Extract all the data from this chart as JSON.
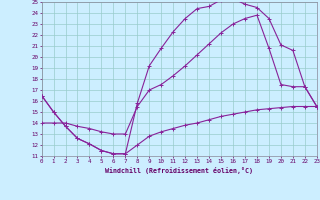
{
  "bg_color": "#cceeff",
  "grid_color": "#99cccc",
  "line_color": "#882299",
  "xmin": 0,
  "xmax": 23,
  "ymin": 11,
  "ymax": 25,
  "yticks": [
    11,
    12,
    13,
    14,
    15,
    16,
    17,
    18,
    19,
    20,
    21,
    22,
    23,
    24,
    25
  ],
  "xticks": [
    0,
    1,
    2,
    3,
    4,
    5,
    6,
    7,
    8,
    9,
    10,
    11,
    12,
    13,
    14,
    15,
    16,
    17,
    18,
    19,
    20,
    21,
    22,
    23
  ],
  "line1_x": [
    0,
    1,
    2,
    3,
    4,
    5,
    6,
    7,
    8,
    9,
    10,
    11,
    12,
    13,
    14,
    15,
    16,
    17,
    18,
    19,
    20,
    21,
    22,
    23
  ],
  "line1_y": [
    16.5,
    15.0,
    13.7,
    12.6,
    12.1,
    11.5,
    11.2,
    11.2,
    15.8,
    19.2,
    20.8,
    22.3,
    23.5,
    24.4,
    24.6,
    25.2,
    25.3,
    24.8,
    24.5,
    23.5,
    21.1,
    20.6,
    17.3,
    15.5
  ],
  "line2_x": [
    0,
    1,
    2,
    3,
    4,
    5,
    6,
    7,
    8,
    9,
    10,
    11,
    12,
    13,
    14,
    15,
    16,
    17,
    18,
    19,
    20,
    21,
    22,
    23
  ],
  "line2_y": [
    16.5,
    15.0,
    13.7,
    12.6,
    12.1,
    11.5,
    11.2,
    11.2,
    12.0,
    12.8,
    13.2,
    13.5,
    13.8,
    14.0,
    14.3,
    14.6,
    14.8,
    15.0,
    15.2,
    15.3,
    15.4,
    15.5,
    15.5,
    15.5
  ],
  "line3_x": [
    0,
    1,
    2,
    3,
    4,
    5,
    6,
    7,
    8,
    9,
    10,
    11,
    12,
    13,
    14,
    15,
    16,
    17,
    18,
    19,
    20,
    21,
    22,
    23
  ],
  "line3_y": [
    14.0,
    14.0,
    14.0,
    13.7,
    13.5,
    13.2,
    13.0,
    13.0,
    15.5,
    17.0,
    17.5,
    18.3,
    19.2,
    20.2,
    21.2,
    22.2,
    23.0,
    23.5,
    23.8,
    20.8,
    17.5,
    17.3,
    17.3,
    15.5
  ],
  "xlabel": "Windchill (Refroidissement éolien,°C)",
  "tick_color": "#660066",
  "label_color": "#660066"
}
